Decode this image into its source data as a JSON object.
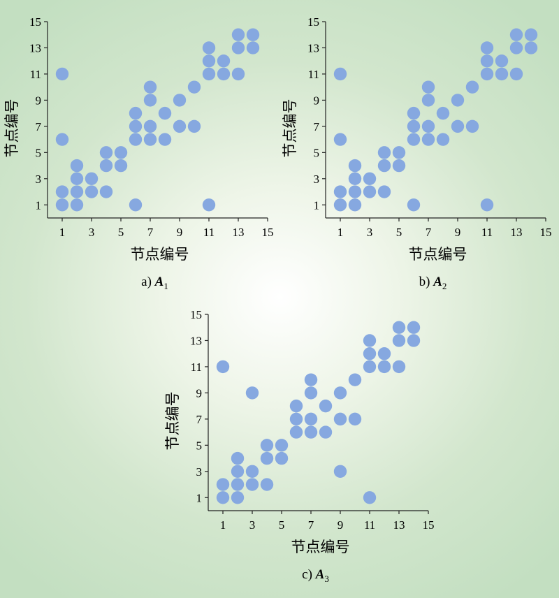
{
  "chart_data": [
    {
      "type": "scatter",
      "caption_prefix": "a) ",
      "caption_var": "A",
      "caption_sub": "1",
      "xlabel": "节点编号",
      "ylabel": "节点编号",
      "xlim": [
        0,
        15
      ],
      "ylim": [
        0,
        15
      ],
      "xticks": [
        1,
        3,
        5,
        7,
        9,
        11,
        13,
        15
      ],
      "yticks": [
        1,
        3,
        5,
        7,
        9,
        11,
        13,
        15
      ],
      "grid": false,
      "marker_color": "#86a8e0",
      "points": [
        [
          1,
          1
        ],
        [
          1,
          2
        ],
        [
          2,
          1
        ],
        [
          2,
          2
        ],
        [
          2,
          3
        ],
        [
          2,
          4
        ],
        [
          3,
          2
        ],
        [
          3,
          3
        ],
        [
          4,
          2
        ],
        [
          4,
          4
        ],
        [
          4,
          5
        ],
        [
          5,
          4
        ],
        [
          5,
          5
        ],
        [
          1,
          6
        ],
        [
          1,
          11
        ],
        [
          6,
          1
        ],
        [
          6,
          6
        ],
        [
          6,
          7
        ],
        [
          6,
          8
        ],
        [
          7,
          6
        ],
        [
          7,
          7
        ],
        [
          7,
          9
        ],
        [
          7,
          10
        ],
        [
          8,
          6
        ],
        [
          8,
          8
        ],
        [
          9,
          7
        ],
        [
          9,
          9
        ],
        [
          10,
          7
        ],
        [
          10,
          10
        ],
        [
          11,
          1
        ],
        [
          11,
          11
        ],
        [
          11,
          12
        ],
        [
          11,
          13
        ],
        [
          12,
          11
        ],
        [
          12,
          12
        ],
        [
          13,
          11
        ],
        [
          13,
          13
        ],
        [
          13,
          14
        ],
        [
          14,
          13
        ],
        [
          14,
          14
        ]
      ]
    },
    {
      "type": "scatter",
      "caption_prefix": "b) ",
      "caption_var": "A",
      "caption_sub": "2",
      "xlabel": "节点编号",
      "ylabel": "节点编号",
      "xlim": [
        0,
        15
      ],
      "ylim": [
        0,
        15
      ],
      "xticks": [
        1,
        3,
        5,
        7,
        9,
        11,
        13,
        15
      ],
      "yticks": [
        1,
        3,
        5,
        7,
        9,
        11,
        13,
        15
      ],
      "grid": false,
      "marker_color": "#86a8e0",
      "points": [
        [
          1,
          1
        ],
        [
          1,
          2
        ],
        [
          2,
          1
        ],
        [
          2,
          2
        ],
        [
          2,
          3
        ],
        [
          2,
          4
        ],
        [
          3,
          2
        ],
        [
          3,
          3
        ],
        [
          4,
          2
        ],
        [
          4,
          4
        ],
        [
          4,
          5
        ],
        [
          5,
          4
        ],
        [
          5,
          5
        ],
        [
          1,
          6
        ],
        [
          1,
          11
        ],
        [
          6,
          1
        ],
        [
          6,
          6
        ],
        [
          6,
          7
        ],
        [
          6,
          8
        ],
        [
          7,
          6
        ],
        [
          7,
          7
        ],
        [
          7,
          9
        ],
        [
          7,
          10
        ],
        [
          8,
          6
        ],
        [
          8,
          8
        ],
        [
          9,
          7
        ],
        [
          9,
          9
        ],
        [
          10,
          7
        ],
        [
          10,
          10
        ],
        [
          11,
          1
        ],
        [
          11,
          11
        ],
        [
          11,
          12
        ],
        [
          11,
          13
        ],
        [
          12,
          11
        ],
        [
          12,
          12
        ],
        [
          13,
          11
        ],
        [
          13,
          13
        ],
        [
          13,
          14
        ],
        [
          14,
          13
        ],
        [
          14,
          14
        ]
      ]
    },
    {
      "type": "scatter",
      "caption_prefix": "c) ",
      "caption_var": "A",
      "caption_sub": "3",
      "xlabel": "节点编号",
      "ylabel": "节点编号",
      "xlim": [
        0,
        15
      ],
      "ylim": [
        0,
        15
      ],
      "xticks": [
        1,
        3,
        5,
        7,
        9,
        11,
        13,
        15
      ],
      "yticks": [
        1,
        3,
        5,
        7,
        9,
        11,
        13,
        15
      ],
      "grid": false,
      "marker_color": "#86a8e0",
      "points": [
        [
          1,
          1
        ],
        [
          1,
          2
        ],
        [
          2,
          1
        ],
        [
          2,
          2
        ],
        [
          2,
          3
        ],
        [
          2,
          4
        ],
        [
          3,
          2
        ],
        [
          3,
          3
        ],
        [
          4,
          2
        ],
        [
          4,
          4
        ],
        [
          4,
          5
        ],
        [
          5,
          4
        ],
        [
          5,
          5
        ],
        [
          1,
          11
        ],
        [
          3,
          9
        ],
        [
          6,
          6
        ],
        [
          6,
          7
        ],
        [
          6,
          8
        ],
        [
          7,
          6
        ],
        [
          7,
          7
        ],
        [
          7,
          9
        ],
        [
          7,
          10
        ],
        [
          8,
          6
        ],
        [
          8,
          8
        ],
        [
          9,
          3
        ],
        [
          9,
          7
        ],
        [
          9,
          9
        ],
        [
          10,
          7
        ],
        [
          10,
          10
        ],
        [
          11,
          1
        ],
        [
          11,
          11
        ],
        [
          11,
          12
        ],
        [
          11,
          13
        ],
        [
          12,
          11
        ],
        [
          12,
          12
        ],
        [
          13,
          11
        ],
        [
          13,
          13
        ],
        [
          13,
          14
        ],
        [
          14,
          13
        ],
        [
          14,
          14
        ]
      ]
    }
  ]
}
